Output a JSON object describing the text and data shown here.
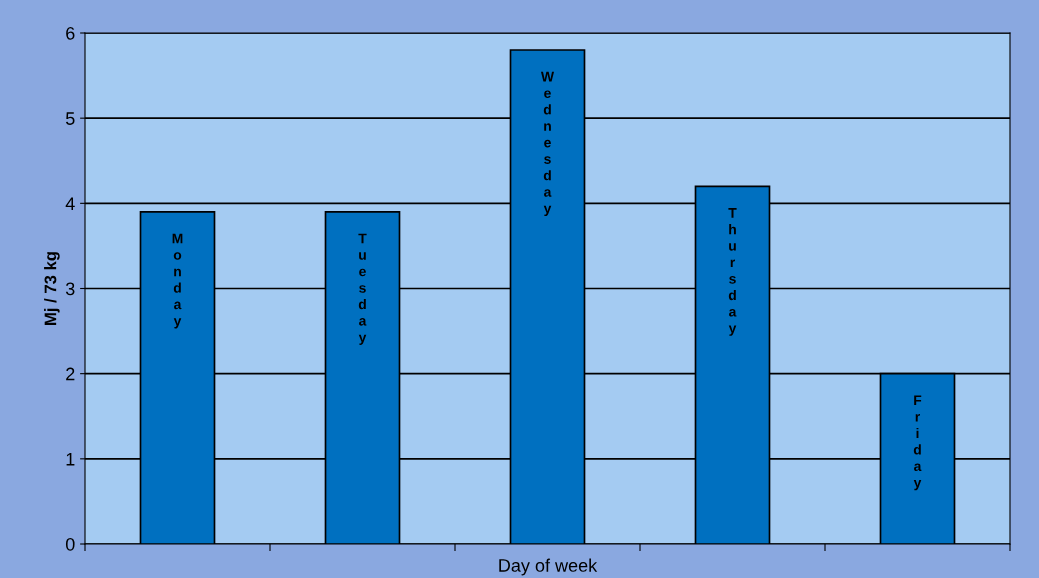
{
  "chart_data": {
    "type": "bar",
    "xlabel": "Day of week",
    "ylabel": "Mj / 73 kg",
    "categories": [
      "Monday",
      "Tuesday",
      "Wednesday",
      "Thursday",
      "Friday"
    ],
    "values": [
      3.9,
      3.9,
      5.8,
      4.2,
      2.0
    ],
    "color": "#0070c0",
    "ylim": [
      0,
      6
    ],
    "yticks": [
      0,
      1,
      2,
      3,
      4,
      5,
      6
    ],
    "grid": "y"
  }
}
